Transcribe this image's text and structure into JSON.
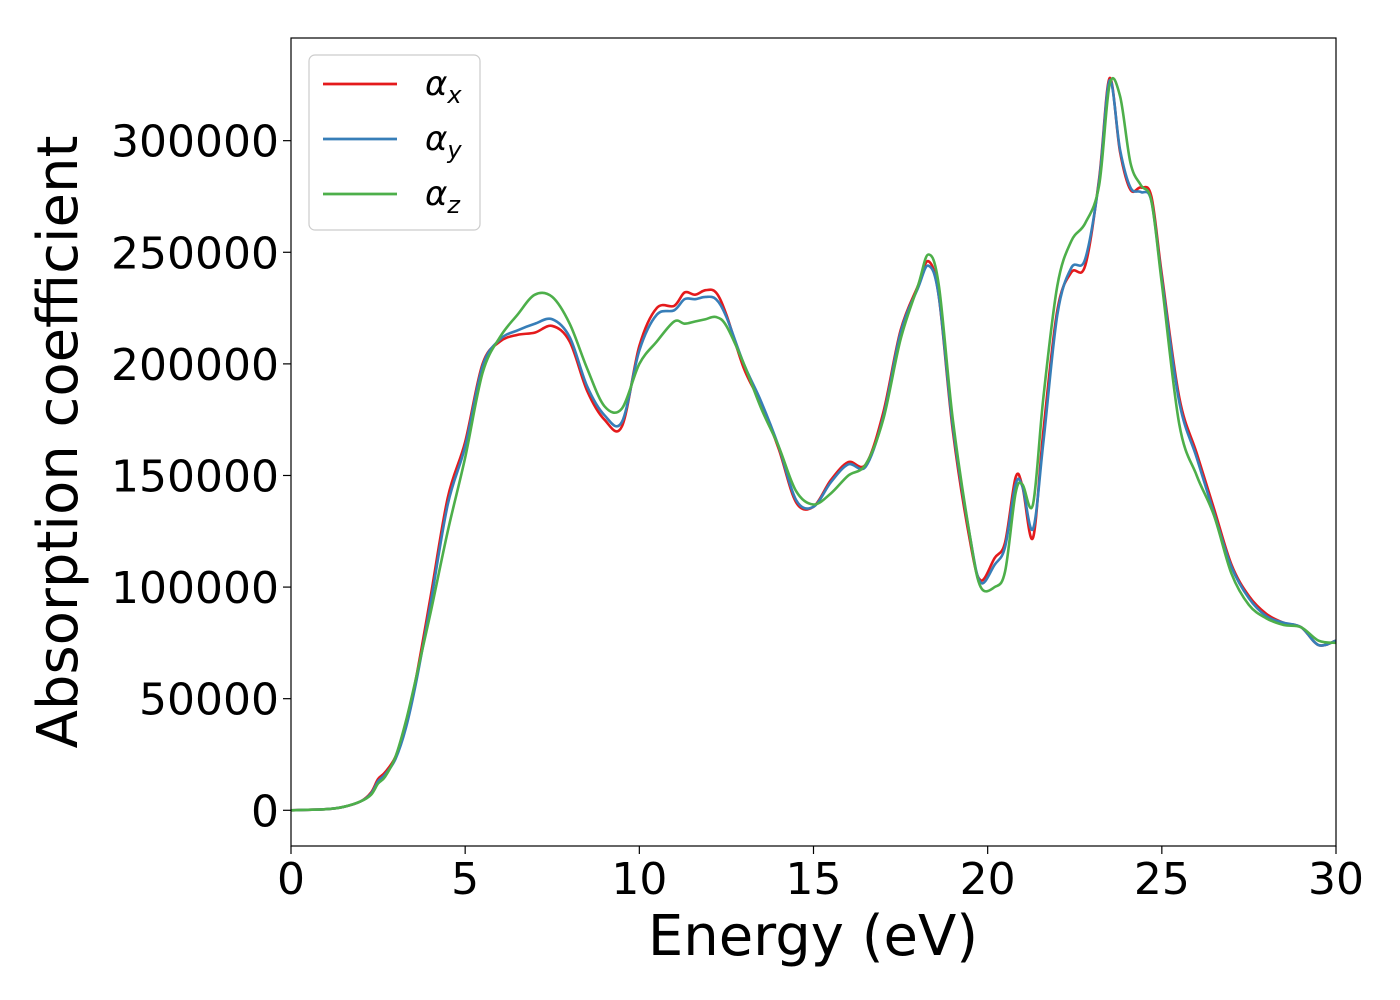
{
  "chart_data": {
    "type": "line",
    "xlabel": "Energy (eV)",
    "ylabel": "Absorption coefficient",
    "xlim": [
      0,
      30
    ],
    "ylim": [
      -16000,
      346000
    ],
    "xticks": [
      "0",
      "5",
      "10",
      "15",
      "20",
      "25",
      "30"
    ],
    "yticks": [
      "0",
      "50000",
      "100000",
      "150000",
      "200000",
      "250000",
      "300000"
    ],
    "grid": false,
    "legend_position": "top-left",
    "series": [
      {
        "name": "α",
        "subscript": "x",
        "color": "#e41a1c",
        "x": [
          0,
          1,
          1.5,
          2,
          2.3,
          2.5,
          2.7,
          3,
          3.3,
          3.6,
          4,
          4.5,
          5,
          5.5,
          6,
          6.5,
          7,
          7.5,
          8,
          8.5,
          9,
          9.5,
          10,
          10.5,
          11,
          11.3,
          11.6,
          11.9,
          12.2,
          12.5,
          13,
          13.5,
          14,
          14.5,
          15,
          15.5,
          16,
          16.5,
          17,
          17.5,
          18,
          18.3,
          18.6,
          19,
          19.5,
          19.8,
          20.2,
          20.5,
          20.8,
          21,
          21.3,
          21.6,
          22,
          22.4,
          22.8,
          23.2,
          23.5,
          23.8,
          24.1,
          24.4,
          24.7,
          25,
          25.5,
          26,
          26.5,
          27,
          27.5,
          28,
          28.5,
          29,
          29.5,
          30
        ],
        "y": [
          0,
          500,
          1500,
          4000,
          8000,
          14000,
          17000,
          24000,
          38000,
          60000,
          95000,
          140000,
          165000,
          200000,
          210000,
          213000,
          214000,
          217000,
          210000,
          188000,
          175000,
          172000,
          208000,
          225000,
          226000,
          232000,
          231000,
          233000,
          232000,
          222000,
          198000,
          182000,
          162000,
          138000,
          136000,
          148000,
          156000,
          155000,
          178000,
          215000,
          235000,
          246000,
          230000,
          170000,
          120000,
          103000,
          113000,
          120000,
          149000,
          145000,
          122000,
          170000,
          224000,
          241000,
          244000,
          283000,
          328000,
          295000,
          278000,
          279000,
          275000,
          240000,
          185000,
          160000,
          135000,
          110000,
          96000,
          88000,
          84000,
          82000,
          74000,
          76000
        ]
      },
      {
        "name": "α",
        "subscript": "y",
        "color": "#377eb8",
        "x": [
          0,
          1,
          1.5,
          2,
          2.3,
          2.5,
          2.7,
          3,
          3.3,
          3.6,
          4,
          4.5,
          5,
          5.5,
          6,
          6.5,
          7,
          7.5,
          8,
          8.5,
          9,
          9.5,
          10,
          10.5,
          11,
          11.3,
          11.6,
          11.9,
          12.2,
          12.5,
          13,
          13.5,
          14,
          14.5,
          15,
          15.5,
          16,
          16.5,
          17,
          17.5,
          18,
          18.3,
          18.6,
          19,
          19.5,
          19.8,
          20.2,
          20.5,
          20.8,
          21,
          21.3,
          21.6,
          22,
          22.4,
          22.8,
          23.2,
          23.5,
          23.8,
          24.1,
          24.4,
          24.7,
          25,
          25.5,
          26,
          26.5,
          27,
          27.5,
          28,
          28.5,
          29,
          29.5,
          30
        ],
        "y": [
          0,
          500,
          1500,
          4000,
          7500,
          13000,
          16000,
          23000,
          37000,
          58000,
          92000,
          137000,
          163000,
          199000,
          211000,
          215000,
          218000,
          220000,
          212000,
          190000,
          177000,
          174000,
          206000,
          222000,
          224000,
          229000,
          229000,
          230000,
          229000,
          221000,
          200000,
          183000,
          163000,
          139000,
          136000,
          147000,
          155000,
          154000,
          176000,
          214000,
          234000,
          244000,
          230000,
          172000,
          122000,
          102000,
          110000,
          118000,
          146000,
          145000,
          126000,
          165000,
          222000,
          243000,
          247000,
          282000,
          327000,
          296000,
          279000,
          277000,
          273000,
          238000,
          183000,
          158000,
          133000,
          109000,
          95000,
          87000,
          84000,
          82000,
          74000,
          76000
        ]
      },
      {
        "name": "α",
        "subscript": "z",
        "color": "#4daf4a",
        "x": [
          0,
          1,
          1.5,
          2,
          2.3,
          2.5,
          2.7,
          3,
          3.3,
          3.6,
          4,
          4.5,
          5,
          5.5,
          6,
          6.5,
          7,
          7.5,
          8,
          8.5,
          9,
          9.5,
          10,
          10.5,
          11,
          11.3,
          11.6,
          11.9,
          12.2,
          12.5,
          13,
          13.5,
          14,
          14.5,
          15,
          15.5,
          16,
          16.5,
          17,
          17.5,
          18,
          18.3,
          18.6,
          19,
          19.5,
          19.8,
          20.2,
          20.5,
          20.8,
          21,
          21.3,
          21.6,
          22,
          22.4,
          22.8,
          23.2,
          23.5,
          23.8,
          24.1,
          24.4,
          24.7,
          25,
          25.5,
          26,
          26.5,
          27,
          27.5,
          28,
          28.5,
          29,
          29.5,
          30
        ],
        "y": [
          0,
          500,
          1500,
          4000,
          7000,
          12000,
          15000,
          24000,
          40000,
          60000,
          88000,
          125000,
          158000,
          196000,
          212000,
          222000,
          231000,
          230000,
          218000,
          198000,
          181000,
          180000,
          200000,
          210000,
          219000,
          218000,
          219000,
          220000,
          221000,
          217000,
          200000,
          180000,
          163000,
          143000,
          137000,
          142000,
          150000,
          155000,
          175000,
          211000,
          235000,
          249000,
          235000,
          175000,
          122000,
          100000,
          100000,
          107000,
          142000,
          146000,
          137000,
          185000,
          235000,
          255000,
          263000,
          280000,
          325000,
          320000,
          290000,
          280000,
          273000,
          236000,
          173000,
          150000,
          132000,
          106000,
          92000,
          86000,
          83000,
          82000,
          76000,
          75000
        ]
      }
    ]
  }
}
